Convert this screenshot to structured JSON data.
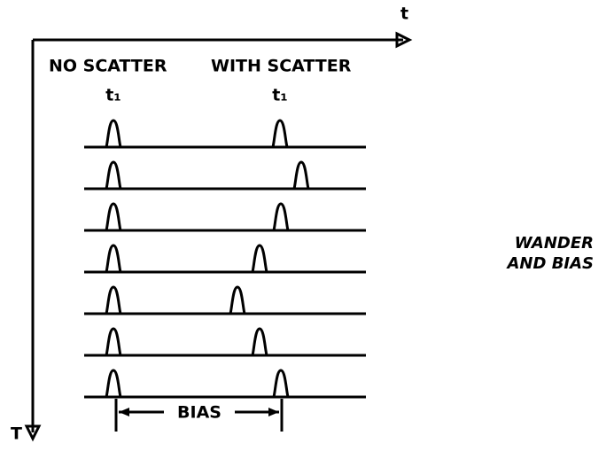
{
  "axes": {
    "horizontal": "t",
    "vertical": "T"
  },
  "columns": {
    "left": "NO SCATTER",
    "right": "WITH SCATTER"
  },
  "time_labels": {
    "left": "t₁",
    "right": "t₁"
  },
  "bias_label": "BIAS",
  "side_note": {
    "line1": "WANDER",
    "line2": "AND BIAS"
  }
}
